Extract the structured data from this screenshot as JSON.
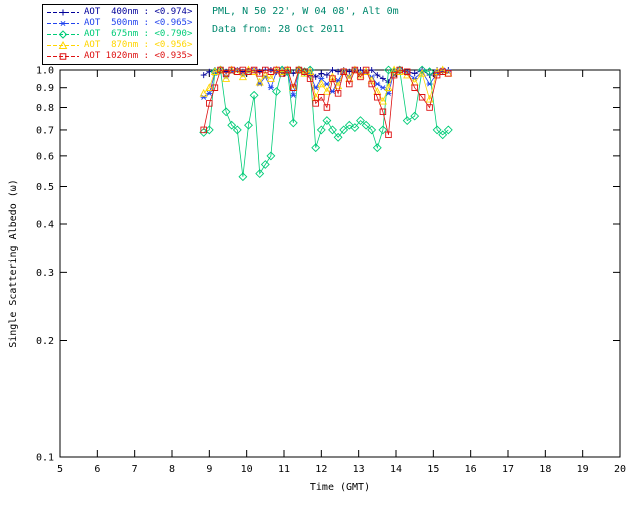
{
  "header": {
    "site_line": "PML, N 50 22', W 04 08', Alt 0m",
    "date_line": "Data from: 28 Oct 2011",
    "color": "#00886e"
  },
  "axis_color": "#000000",
  "chart_data": {
    "type": "line",
    "title": "",
    "xlabel": "Time (GMT)",
    "ylabel": "Single Scattering Albedo (ω)",
    "xlim": [
      5,
      20
    ],
    "ylim": [
      0.1,
      1.0
    ],
    "yscale": "log",
    "grid": false,
    "legend_position": "top-left",
    "xticks": [
      5,
      6,
      7,
      8,
      9,
      10,
      11,
      12,
      13,
      14,
      15,
      16,
      17,
      18,
      19,
      20
    ],
    "yticks": [
      0.1,
      0.2,
      0.3,
      0.4,
      0.5,
      0.6,
      0.7,
      0.8,
      0.9,
      1.0
    ],
    "x": [
      8.85,
      9.0,
      9.15,
      9.3,
      9.45,
      9.6,
      9.75,
      9.9,
      10.05,
      10.2,
      10.35,
      10.5,
      10.65,
      10.8,
      10.95,
      11.1,
      11.25,
      11.4,
      11.55,
      11.7,
      11.85,
      12.0,
      12.15,
      12.3,
      12.45,
      12.6,
      12.75,
      12.9,
      13.05,
      13.2,
      13.35,
      13.5,
      13.65,
      13.8,
      13.95,
      14.1,
      14.3,
      14.5,
      14.7,
      14.9,
      15.1,
      15.25,
      15.4
    ],
    "series": [
      {
        "name": "AOT 400nm",
        "legend_label": "AOT  400nm : <0.974>",
        "mean": "<0.974>",
        "color": "#000099",
        "marker": "plus",
        "values": [
          0.97,
          0.99,
          1.0,
          1.0,
          0.99,
          1.0,
          1.0,
          0.99,
          1.0,
          1.0,
          0.99,
          1.0,
          1.0,
          0.99,
          1.0,
          1.0,
          0.98,
          1.0,
          0.99,
          1.0,
          0.96,
          0.98,
          0.97,
          1.0,
          0.99,
          1.0,
          0.99,
          1.0,
          1.0,
          0.99,
          1.0,
          0.97,
          0.95,
          0.93,
          1.0,
          1.0,
          0.99,
          0.98,
          1.0,
          0.97,
          1.0,
          0.99,
          1.0
        ]
      },
      {
        "name": "AOT 500nm",
        "legend_label": "AOT  500nm : <0.965>",
        "mean": "<0.965>",
        "color": "#2244ee",
        "marker": "asterisk",
        "values": [
          0.85,
          0.87,
          0.98,
          1.0,
          0.96,
          0.99,
          1.0,
          0.97,
          0.99,
          1.0,
          0.92,
          0.96,
          0.9,
          0.99,
          1.0,
          0.98,
          0.86,
          1.0,
          0.99,
          0.97,
          0.9,
          0.95,
          0.92,
          0.88,
          0.94,
          0.99,
          0.96,
          1.0,
          0.98,
          0.99,
          0.96,
          0.92,
          0.9,
          0.87,
          0.99,
          1.0,
          0.98,
          0.95,
          0.99,
          0.92,
          0.98,
          1.0,
          0.99
        ]
      },
      {
        "name": "AOT 675nm",
        "legend_label": "AOT  675nm : <0.790>",
        "mean": "<0.790>",
        "color": "#00cc77",
        "marker": "diamond",
        "values": [
          0.69,
          0.7,
          0.99,
          1.0,
          0.78,
          0.72,
          0.7,
          0.53,
          0.72,
          0.86,
          0.54,
          0.57,
          0.6,
          0.88,
          1.0,
          0.99,
          0.73,
          1.0,
          0.99,
          1.0,
          0.63,
          0.7,
          0.74,
          0.7,
          0.67,
          0.7,
          0.72,
          0.71,
          0.74,
          0.72,
          0.7,
          0.63,
          0.7,
          1.0,
          0.99,
          1.0,
          0.74,
          0.76,
          1.0,
          0.99,
          0.7,
          0.68,
          0.7
        ]
      },
      {
        "name": "AOT 870nm",
        "legend_label": "AOT  870nm : <0.956>",
        "mean": "<0.956>",
        "color": "#ffd500",
        "marker": "triangle",
        "values": [
          0.87,
          0.9,
          0.99,
          1.0,
          0.95,
          1.0,
          0.99,
          0.96,
          1.0,
          0.99,
          0.93,
          0.97,
          0.95,
          1.0,
          0.99,
          1.0,
          0.9,
          1.0,
          0.98,
          0.99,
          0.85,
          0.92,
          0.88,
          0.96,
          0.91,
          0.99,
          0.95,
          1.0,
          0.97,
          0.99,
          0.94,
          0.88,
          0.83,
          0.9,
          1.0,
          0.99,
          0.97,
          0.93,
          0.98,
          0.84,
          0.99,
          1.0,
          0.98
        ]
      },
      {
        "name": "AOT 1020nm",
        "legend_label": "AOT 1020nm : <0.935>",
        "mean": "<0.935>",
        "color": "#dd1111",
        "marker": "square",
        "values": [
          0.7,
          0.82,
          0.9,
          1.0,
          0.98,
          1.0,
          0.99,
          1.0,
          0.99,
          1.0,
          0.98,
          1.0,
          0.99,
          1.0,
          0.98,
          1.0,
          0.9,
          1.0,
          0.99,
          0.95,
          0.82,
          0.85,
          0.8,
          0.95,
          0.87,
          0.99,
          0.92,
          1.0,
          0.96,
          1.0,
          0.92,
          0.85,
          0.78,
          0.68,
          0.97,
          1.0,
          0.99,
          0.9,
          0.85,
          0.8,
          0.97,
          0.99,
          0.98
        ]
      }
    ]
  }
}
